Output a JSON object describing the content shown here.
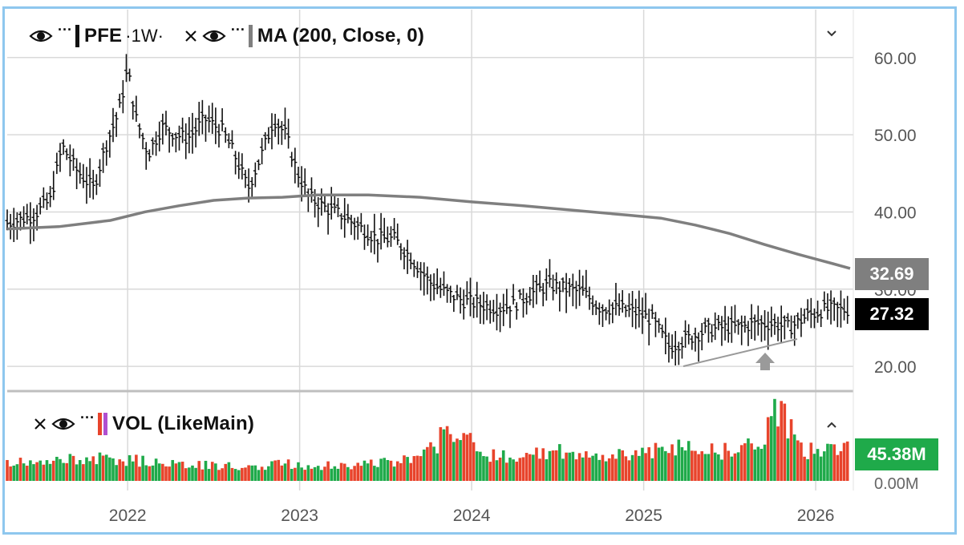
{
  "legend_main": {
    "symbol": "PFE",
    "interval": "·1W·",
    "ma_label": "MA (200, Close, 0)",
    "more": "···",
    "eye_icon": "eye-icon",
    "close_icon": "close-icon"
  },
  "legend_vol": {
    "label": "VOL (LikeMain)",
    "more": "···"
  },
  "colors": {
    "price": "#111111",
    "ma": "#7f7f7f",
    "vol_up": "#1faa4a",
    "vol_down": "#e8442c",
    "grid": "#d9d9d9",
    "frame": "#8ec7ee",
    "vol_tag": "#1faa4a"
  },
  "tags": {
    "ma_value": "32.69",
    "price_value": "27.32",
    "vol_value": "45.38M"
  },
  "chart_data": [
    {
      "type": "line",
      "title": "PFE ·1W·",
      "xlabel": "",
      "ylabel": "",
      "ylim": [
        17,
        66
      ],
      "xlim": [
        2021.3,
        2026.2
      ],
      "y_ticks": [
        "60.00",
        "50.00",
        "40.00",
        "30.00",
        "20.00"
      ],
      "x_ticks": [
        "2022",
        "2023",
        "2024",
        "2025",
        "2026"
      ],
      "grid": true,
      "series": [
        {
          "name": "PFE",
          "x": [
            2021.3,
            2021.45,
            2021.55,
            2021.62,
            2021.7,
            2021.8,
            2021.88,
            2021.95,
            2022.0,
            2022.05,
            2022.12,
            2022.2,
            2022.28,
            2022.35,
            2022.45,
            2022.55,
            2022.62,
            2022.7,
            2022.78,
            2022.85,
            2022.92,
            2022.98,
            2023.05,
            2023.15,
            2023.25,
            2023.35,
            2023.45,
            2023.55,
            2023.65,
            2023.75,
            2023.85,
            2023.95,
            2024.05,
            2024.15,
            2024.25,
            2024.35,
            2024.45,
            2024.55,
            2024.65,
            2024.75,
            2024.85,
            2024.95,
            2025.05,
            2025.15,
            2025.25,
            2025.35,
            2025.45,
            2025.55,
            2025.65,
            2025.75,
            2025.85,
            2025.95,
            2026.05,
            2026.2
          ],
          "y": [
            38.5,
            39.5,
            41.5,
            48.5,
            45.5,
            43.0,
            49.0,
            53.0,
            58.5,
            52.0,
            47.5,
            51.0,
            50.0,
            49.5,
            52.0,
            50.5,
            47.5,
            43.0,
            47.5,
            52.0,
            50.0,
            45.5,
            42.0,
            40.5,
            39.5,
            38.0,
            36.5,
            36.5,
            34.0,
            31.0,
            29.5,
            28.5,
            28.0,
            27.5,
            28.0,
            29.5,
            30.5,
            30.0,
            29.5,
            27.5,
            27.5,
            27.0,
            26.0,
            22.5,
            23.5,
            24.5,
            25.0,
            25.0,
            25.5,
            25.5,
            25.0,
            26.5,
            27.3,
            27.32
          ]
        },
        {
          "name": "MA (200, Close, 0)",
          "x": [
            2021.3,
            2021.6,
            2021.9,
            2022.1,
            2022.3,
            2022.5,
            2022.7,
            2022.9,
            2023.1,
            2023.4,
            2023.7,
            2024.0,
            2024.3,
            2024.6,
            2024.9,
            2025.1,
            2025.3,
            2025.5,
            2025.7,
            2025.9,
            2026.1,
            2026.2
          ],
          "y": [
            37.8,
            38.1,
            38.9,
            40.0,
            40.8,
            41.5,
            41.8,
            41.9,
            42.2,
            42.2,
            41.9,
            41.3,
            40.8,
            40.2,
            39.6,
            39.2,
            38.3,
            37.2,
            35.8,
            34.5,
            33.3,
            32.69
          ]
        }
      ]
    },
    {
      "type": "bar",
      "title": "VOL (LikeMain)",
      "y_ticks": [
        "0.00M"
      ],
      "x_ticks": [
        "2022",
        "2023",
        "2024",
        "2025",
        "2026"
      ],
      "ylim": [
        0,
        110
      ],
      "series": [
        {
          "name": "VOL (LikeMain)",
          "x": [
            2021.3,
            2021.5,
            2021.7,
            2021.9,
            2022.1,
            2022.3,
            2022.5,
            2022.7,
            2022.9,
            2023.1,
            2023.3,
            2023.5,
            2023.7,
            2023.9,
            2024.1,
            2024.3,
            2024.5,
            2024.7,
            2024.9,
            2025.1,
            2025.3,
            2025.5,
            2025.7,
            2025.8,
            2025.9,
            2026.1,
            2026.2
          ],
          "values": [
            25,
            22,
            30,
            28,
            26,
            22,
            20,
            18,
            22,
            20,
            21,
            24,
            28,
            72,
            33,
            34,
            38,
            30,
            36,
            40,
            45,
            38,
            55,
            100,
            40,
            38,
            45.38
          ]
        }
      ]
    }
  ]
}
